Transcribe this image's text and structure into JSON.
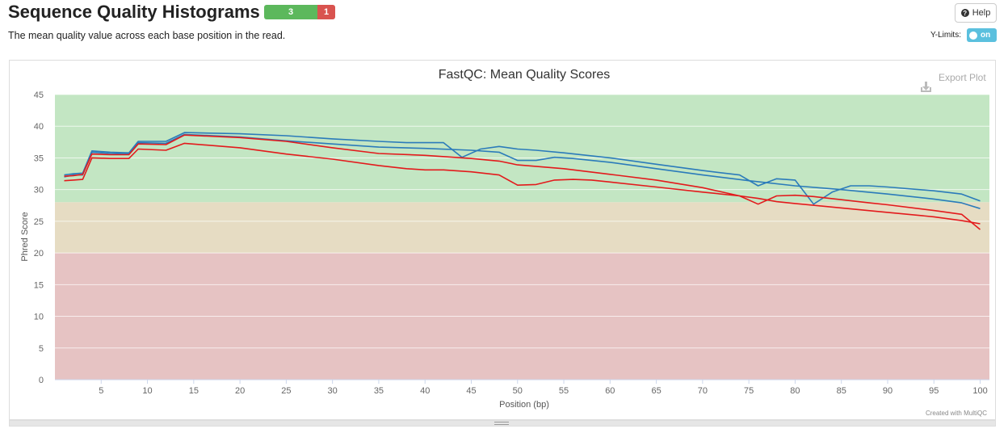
{
  "header": {
    "title": "Sequence Quality Histograms",
    "pass_count": "3",
    "fail_count": "1",
    "subtitle": "The mean quality value across each base position in the read.",
    "help_label": "Help",
    "ylimits_label": "Y-Limits:",
    "toggle_label": "on"
  },
  "plot": {
    "export_label": "Export Plot",
    "credit": "Created with MultiQC"
  },
  "colors": {
    "band_good": "#c3e6c3",
    "band_warn": "#e6dcc3",
    "band_bad": "#e6c3c3",
    "blue": "#2b7bba",
    "red": "#e31a1c"
  },
  "chart_data": {
    "type": "line",
    "title": "FastQC: Mean Quality Scores",
    "xlabel": "Position (bp)",
    "ylabel": "Phred Score",
    "xlim": [
      0,
      101
    ],
    "ylim": [
      0,
      45
    ],
    "xticks": [
      5,
      10,
      15,
      20,
      25,
      30,
      35,
      40,
      45,
      50,
      55,
      60,
      65,
      70,
      75,
      80,
      85,
      90,
      95,
      100
    ],
    "yticks": [
      0,
      5,
      10,
      15,
      20,
      25,
      30,
      35,
      40,
      45
    ],
    "bands": [
      {
        "from": 28,
        "to": 45,
        "color": "#c3e6c3"
      },
      {
        "from": 20,
        "to": 28,
        "color": "#e6dcc3"
      },
      {
        "from": 0,
        "to": 20,
        "color": "#e6c3c3"
      }
    ],
    "series": [
      {
        "color": "#2b7bba",
        "points": [
          [
            1,
            32.3
          ],
          [
            2,
            32.5
          ],
          [
            3,
            32.6
          ],
          [
            4,
            36.1
          ],
          [
            6,
            35.9
          ],
          [
            8,
            35.8
          ],
          [
            9,
            37.6
          ],
          [
            12,
            37.6
          ],
          [
            14,
            39.0
          ],
          [
            20,
            38.8
          ],
          [
            25,
            38.5
          ],
          [
            30,
            38.0
          ],
          [
            35,
            37.6
          ],
          [
            38,
            37.4
          ],
          [
            42,
            37.4
          ],
          [
            44,
            35.1
          ],
          [
            46,
            36.4
          ],
          [
            48,
            36.8
          ],
          [
            50,
            36.4
          ],
          [
            52,
            36.2
          ],
          [
            55,
            35.8
          ],
          [
            60,
            35.0
          ],
          [
            65,
            34.0
          ],
          [
            70,
            33.0
          ],
          [
            74,
            32.3
          ],
          [
            76,
            30.6
          ],
          [
            78,
            31.7
          ],
          [
            80,
            31.5
          ],
          [
            82,
            27.7
          ],
          [
            84,
            29.6
          ],
          [
            86,
            30.6
          ],
          [
            88,
            30.6
          ],
          [
            90,
            30.4
          ],
          [
            95,
            29.8
          ],
          [
            98,
            29.3
          ],
          [
            100,
            28.2
          ]
        ]
      },
      {
        "color": "#2b7bba",
        "points": [
          [
            1,
            32.0
          ],
          [
            2,
            32.3
          ],
          [
            3,
            32.3
          ],
          [
            4,
            35.9
          ],
          [
            6,
            35.7
          ],
          [
            8,
            35.6
          ],
          [
            9,
            37.4
          ],
          [
            12,
            37.3
          ],
          [
            14,
            38.7
          ],
          [
            20,
            38.3
          ],
          [
            25,
            37.7
          ],
          [
            30,
            37.2
          ],
          [
            35,
            36.7
          ],
          [
            40,
            36.5
          ],
          [
            45,
            36.2
          ],
          [
            48,
            35.9
          ],
          [
            50,
            34.6
          ],
          [
            52,
            34.6
          ],
          [
            54,
            35.1
          ],
          [
            56,
            34.9
          ],
          [
            60,
            34.3
          ],
          [
            65,
            33.3
          ],
          [
            70,
            32.3
          ],
          [
            75,
            31.4
          ],
          [
            80,
            30.6
          ],
          [
            85,
            30.0
          ],
          [
            90,
            29.3
          ],
          [
            95,
            28.5
          ],
          [
            98,
            27.9
          ],
          [
            100,
            27.0
          ]
        ]
      },
      {
        "color": "#e31a1c",
        "points": [
          [
            1,
            32.1
          ],
          [
            2,
            32.2
          ],
          [
            3,
            32.4
          ],
          [
            4,
            35.6
          ],
          [
            6,
            35.5
          ],
          [
            8,
            35.5
          ],
          [
            9,
            37.2
          ],
          [
            12,
            37.1
          ],
          [
            14,
            38.6
          ],
          [
            20,
            38.2
          ],
          [
            25,
            37.6
          ],
          [
            30,
            36.6
          ],
          [
            35,
            35.7
          ],
          [
            40,
            35.4
          ],
          [
            45,
            34.9
          ],
          [
            48,
            34.5
          ],
          [
            50,
            33.9
          ],
          [
            55,
            33.3
          ],
          [
            60,
            32.4
          ],
          [
            65,
            31.5
          ],
          [
            70,
            30.3
          ],
          [
            74,
            29.0
          ],
          [
            76,
            28.6
          ],
          [
            78,
            28.1
          ],
          [
            80,
            27.8
          ],
          [
            85,
            27.1
          ],
          [
            90,
            26.4
          ],
          [
            95,
            25.7
          ],
          [
            98,
            25.1
          ],
          [
            100,
            24.6
          ]
        ]
      },
      {
        "color": "#e31a1c",
        "points": [
          [
            1,
            31.4
          ],
          [
            2,
            31.5
          ],
          [
            3,
            31.6
          ],
          [
            4,
            35.0
          ],
          [
            6,
            34.9
          ],
          [
            8,
            34.9
          ],
          [
            9,
            36.4
          ],
          [
            12,
            36.2
          ],
          [
            14,
            37.3
          ],
          [
            20,
            36.6
          ],
          [
            25,
            35.6
          ],
          [
            30,
            34.8
          ],
          [
            35,
            33.8
          ],
          [
            38,
            33.3
          ],
          [
            40,
            33.1
          ],
          [
            42,
            33.1
          ],
          [
            45,
            32.8
          ],
          [
            48,
            32.3
          ],
          [
            50,
            30.7
          ],
          [
            52,
            30.8
          ],
          [
            54,
            31.5
          ],
          [
            56,
            31.6
          ],
          [
            58,
            31.5
          ],
          [
            60,
            31.2
          ],
          [
            65,
            30.4
          ],
          [
            70,
            29.6
          ],
          [
            74,
            29.0
          ],
          [
            76,
            27.7
          ],
          [
            78,
            29.0
          ],
          [
            80,
            29.1
          ],
          [
            82,
            28.9
          ],
          [
            85,
            28.4
          ],
          [
            88,
            27.9
          ],
          [
            90,
            27.6
          ],
          [
            95,
            26.7
          ],
          [
            98,
            26.1
          ],
          [
            100,
            23.7
          ]
        ]
      }
    ]
  }
}
